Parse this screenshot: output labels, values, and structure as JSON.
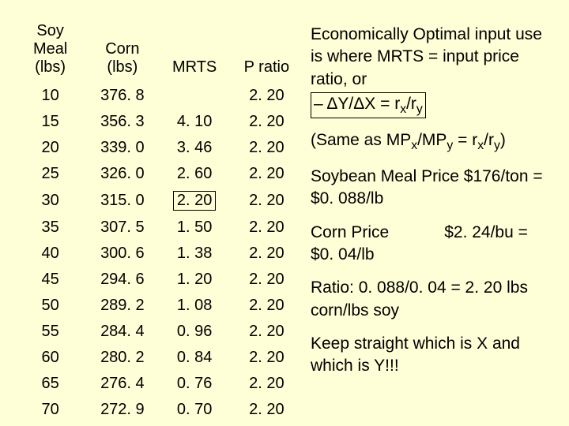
{
  "background_color": "#fefed7",
  "table": {
    "headers": {
      "soy": [
        "Soy Meal",
        "(lbs)"
      ],
      "corn": [
        "Corn",
        "(lbs)"
      ],
      "mrts": "MRTS",
      "pratio": "P ratio"
    },
    "rows": [
      {
        "soy": "10",
        "corn": "376. 8",
        "mrts": "",
        "pratio": "2. 20"
      },
      {
        "soy": "15",
        "corn": "356. 3",
        "mrts": "4. 10",
        "pratio": "2. 20"
      },
      {
        "soy": "20",
        "corn": "339. 0",
        "mrts": "3. 46",
        "pratio": "2. 20"
      },
      {
        "soy": "25",
        "corn": "326. 0",
        "mrts": "2. 60",
        "pratio": "2. 20"
      },
      {
        "soy": "30",
        "corn": "315. 0",
        "mrts": "2. 20",
        "pratio": "2. 20",
        "mrts_boxed": true
      },
      {
        "soy": "35",
        "corn": "307. 5",
        "mrts": "1. 50",
        "pratio": "2. 20"
      },
      {
        "soy": "40",
        "corn": "300. 6",
        "mrts": "1. 38",
        "pratio": "2. 20"
      },
      {
        "soy": "45",
        "corn": "294. 6",
        "mrts": "1. 20",
        "pratio": "2. 20"
      },
      {
        "soy": "50",
        "corn": "289. 2",
        "mrts": "1. 08",
        "pratio": "2. 20"
      },
      {
        "soy": "55",
        "corn": "284. 4",
        "mrts": "0. 96",
        "pratio": "2. 20"
      },
      {
        "soy": "60",
        "corn": "280. 2",
        "mrts": "0. 84",
        "pratio": "2. 20"
      },
      {
        "soy": "65",
        "corn": "276. 4",
        "mrts": "0. 76",
        "pratio": "2. 20"
      },
      {
        "soy": "70",
        "corn": "272. 9",
        "mrts": "0. 70",
        "pratio": "2. 20"
      }
    ]
  },
  "text": {
    "p1a": "Economically Optimal input use is where MRTS = input price ratio, or",
    "p1b_html": "– ΔY/ΔX = r<sub>x</sub>/r<sub>y</sub>",
    "p2_html": "(Same as MP<sub>x</sub>/MP<sub>y</sub> = r<sub>x</sub>/r<sub>y</sub>)",
    "p3": "Soybean Meal Price $176/ton =  $0. 088/lb",
    "p4": "Corn Price            $2. 24/bu = $0. 04/lb",
    "p5": "Ratio: 0. 088/0. 04 = 2. 20 lbs corn/lbs soy",
    "p6": "Keep straight which is X and which is Y!!!"
  }
}
